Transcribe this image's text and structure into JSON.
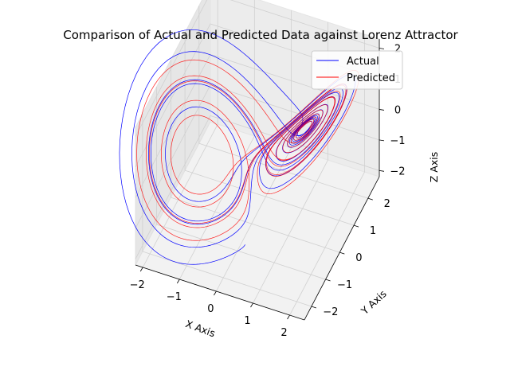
{
  "chart_data": {
    "type": "line-3d",
    "title": "Comparison of Actual and Predicted Data against Lorenz Attractor",
    "xlabel": "X Axis",
    "ylabel": "Y Axis",
    "zlabel": "Z Axis",
    "xlim": [
      -2.2,
      2.4
    ],
    "ylim": [
      -2.5,
      2.8
    ],
    "zlim": [
      -2.2,
      2.3
    ],
    "xticks": [
      "−2",
      "−1",
      "0",
      "1",
      "2"
    ],
    "yticks": [
      "−2",
      "−1",
      "0",
      "1",
      "2"
    ],
    "zticks": [
      "−2",
      "−1",
      "0",
      "1",
      "2"
    ],
    "grid": true,
    "legend_position": "top-right",
    "series": [
      {
        "name": "Actual",
        "color": "#0000ff"
      },
      {
        "name": "Predicted",
        "color": "#ff0000"
      }
    ]
  }
}
